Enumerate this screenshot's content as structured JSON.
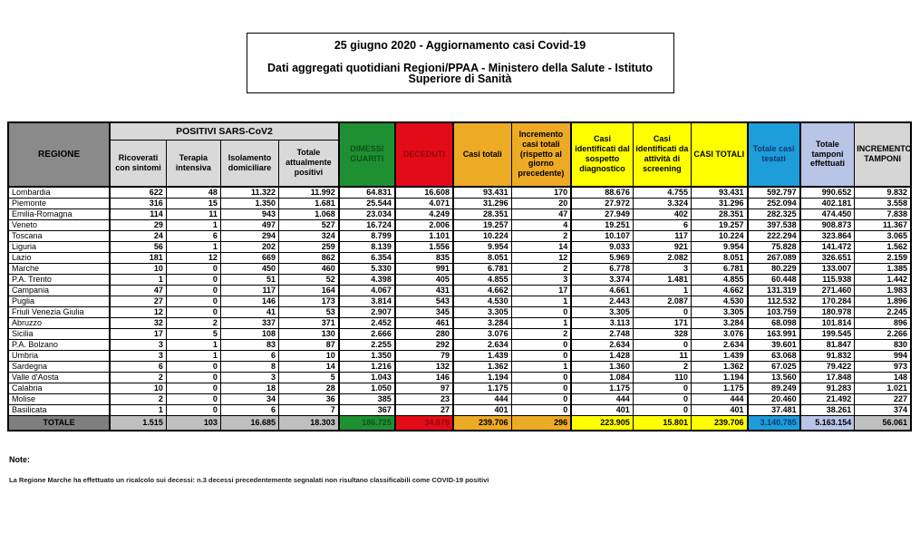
{
  "title": {
    "line1": "25 giugno 2020 - Aggiornamento casi Covid-19",
    "line2": "Dati aggregati quotidiani Regioni/PPAA - Ministero della Salute - Istituto Superiore di Sanità"
  },
  "table": {
    "region_header": "REGIONE",
    "group_header": "POSITIVI SARS-CoV2",
    "columns": [
      "Ricoverati con sintomi",
      "Terapia intensiva",
      "Isolamento domiciliare",
      "Totale attualmente positivi",
      "DIMESSI GUARITI",
      "DECEDUTI",
      "Casi totali",
      "Incremento casi totali (rispetto al giorno precedente)",
      "Casi identificati dal sospetto diagnostico",
      "Casi identificati da attività di screening",
      "CASI TOTALI",
      "Totale casi testati",
      "Totale tamponi effettuati",
      "INCREMENTO TAMPONI"
    ],
    "rows": [
      {
        "name": "Lombardia",
        "values": [
          "622",
          "48",
          "11.322",
          "11.992",
          "64.831",
          "16.608",
          "93.431",
          "170",
          "88.676",
          "4.755",
          "93.431",
          "592.797",
          "990.652",
          "9.832"
        ]
      },
      {
        "name": "Piemonte",
        "values": [
          "316",
          "15",
          "1.350",
          "1.681",
          "25.544",
          "4.071",
          "31.296",
          "20",
          "27.972",
          "3.324",
          "31.296",
          "252.094",
          "402.181",
          "3.558"
        ]
      },
      {
        "name": "Emilia-Romagna",
        "values": [
          "114",
          "11",
          "943",
          "1.068",
          "23.034",
          "4.249",
          "28.351",
          "47",
          "27.949",
          "402",
          "28.351",
          "282.325",
          "474.450",
          "7.838"
        ]
      },
      {
        "name": "Veneto",
        "values": [
          "29",
          "1",
          "497",
          "527",
          "16.724",
          "2.006",
          "19.257",
          "4",
          "19.251",
          "6",
          "19.257",
          "397.538",
          "908.873",
          "11.367"
        ]
      },
      {
        "name": "Toscana",
        "values": [
          "24",
          "6",
          "294",
          "324",
          "8.799",
          "1.101",
          "10.224",
          "2",
          "10.107",
          "117",
          "10.224",
          "222.294",
          "323.864",
          "3.065"
        ]
      },
      {
        "name": "Liguria",
        "values": [
          "56",
          "1",
          "202",
          "259",
          "8.139",
          "1.556",
          "9.954",
          "14",
          "9.033",
          "921",
          "9.954",
          "75.828",
          "141.472",
          "1.562"
        ]
      },
      {
        "name": "Lazio",
        "values": [
          "181",
          "12",
          "669",
          "862",
          "6.354",
          "835",
          "8.051",
          "12",
          "5.969",
          "2.082",
          "8.051",
          "267.089",
          "326.651",
          "2.159"
        ]
      },
      {
        "name": "Marche",
        "values": [
          "10",
          "0",
          "450",
          "460",
          "5.330",
          "991",
          "6.781",
          "2",
          "6.778",
          "3",
          "6.781",
          "80.229",
          "133.007",
          "1.385"
        ]
      },
      {
        "name": "P.A. Trento",
        "values": [
          "1",
          "0",
          "51",
          "52",
          "4.398",
          "405",
          "4.855",
          "3",
          "3.374",
          "1.481",
          "4.855",
          "60.448",
          "115.938",
          "1.442"
        ]
      },
      {
        "name": "Campania",
        "values": [
          "47",
          "0",
          "117",
          "164",
          "4.067",
          "431",
          "4.662",
          "17",
          "4.661",
          "1",
          "4.662",
          "131.319",
          "271.460",
          "1.983"
        ]
      },
      {
        "name": "Puglia",
        "values": [
          "27",
          "0",
          "146",
          "173",
          "3.814",
          "543",
          "4.530",
          "1",
          "2.443",
          "2.087",
          "4.530",
          "112.532",
          "170.284",
          "1.896"
        ]
      },
      {
        "name": "Friuli Venezia Giulia",
        "values": [
          "12",
          "0",
          "41",
          "53",
          "2.907",
          "345",
          "3.305",
          "0",
          "3.305",
          "0",
          "3.305",
          "103.759",
          "180.978",
          "2.245"
        ]
      },
      {
        "name": "Abruzzo",
        "values": [
          "32",
          "2",
          "337",
          "371",
          "2.452",
          "461",
          "3.284",
          "1",
          "3.113",
          "171",
          "3.284",
          "68.098",
          "101.814",
          "896"
        ]
      },
      {
        "name": "Sicilia",
        "values": [
          "17",
          "5",
          "108",
          "130",
          "2.666",
          "280",
          "3.076",
          "2",
          "2.748",
          "328",
          "3.076",
          "163.991",
          "199.545",
          "2.266"
        ]
      },
      {
        "name": "P.A. Bolzano",
        "values": [
          "3",
          "1",
          "83",
          "87",
          "2.255",
          "292",
          "2.634",
          "0",
          "2.634",
          "0",
          "2.634",
          "39.601",
          "81.847",
          "830"
        ]
      },
      {
        "name": "Umbria",
        "values": [
          "3",
          "1",
          "6",
          "10",
          "1.350",
          "79",
          "1.439",
          "0",
          "1.428",
          "11",
          "1.439",
          "63.068",
          "91.832",
          "994"
        ]
      },
      {
        "name": "Sardegna",
        "values": [
          "6",
          "0",
          "8",
          "14",
          "1.216",
          "132",
          "1.362",
          "1",
          "1.360",
          "2",
          "1.362",
          "67.025",
          "79.422",
          "973"
        ]
      },
      {
        "name": "Valle d'Aosta",
        "values": [
          "2",
          "0",
          "3",
          "5",
          "1.043",
          "146",
          "1.194",
          "0",
          "1.084",
          "110",
          "1.194",
          "13.560",
          "17.848",
          "148"
        ]
      },
      {
        "name": "Calabria",
        "values": [
          "10",
          "0",
          "18",
          "28",
          "1.050",
          "97",
          "1.175",
          "0",
          "1.175",
          "0",
          "1.175",
          "89.249",
          "91.283",
          "1.021"
        ]
      },
      {
        "name": "Molise",
        "values": [
          "2",
          "0",
          "34",
          "36",
          "385",
          "23",
          "444",
          "0",
          "444",
          "0",
          "444",
          "20.460",
          "21.492",
          "227"
        ]
      },
      {
        "name": "Basilicata",
        "values": [
          "1",
          "0",
          "6",
          "7",
          "367",
          "27",
          "401",
          "0",
          "401",
          "0",
          "401",
          "37.481",
          "38.261",
          "374"
        ]
      }
    ],
    "total": {
      "name": "TOTALE",
      "values": [
        "1.515",
        "103",
        "16.685",
        "18.303",
        "186.725",
        "34.678",
        "239.706",
        "296",
        "223.905",
        "15.801",
        "239.706",
        "3.140.785",
        "5.163.154",
        "56.061"
      ]
    }
  },
  "notes": {
    "label": "Note:",
    "text": "La Regione Marche ha effettuato un ricalcolo sui decessi: n.3 decessi precedentemente segnalati non risultano classificabili come COVID-19 positivi"
  },
  "colors": {
    "green": "#1f9032",
    "green_text": "#0c521c",
    "red": "#e30b17",
    "red_text": "#8f0a10",
    "orange": "#edaa24",
    "yellow": "#ffff00",
    "blue": "#1e9ddb",
    "blue_text": "#123a6d",
    "periwinkle": "#b9c5e6",
    "gray_header": "#d6d6d6",
    "subheader_gray": "#d9d9d9",
    "region_header": "#8a8a8a",
    "total_gray": "#bfbfbf",
    "total_region": "#7f7f7f"
  }
}
